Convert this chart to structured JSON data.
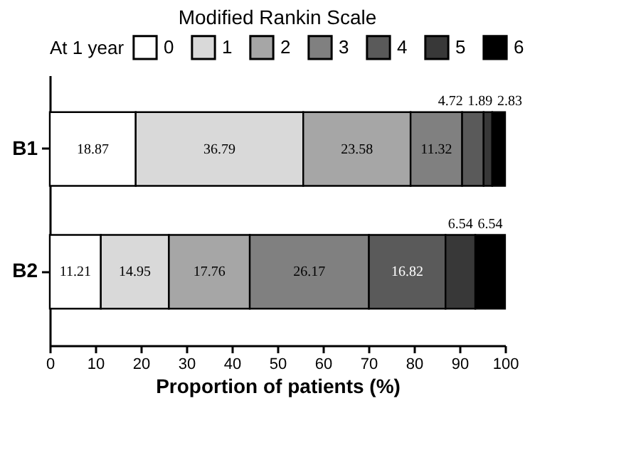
{
  "chart_data": {
    "type": "bar",
    "orientation": "horizontal",
    "stacked": true,
    "title": "Modified Rankin Scale",
    "legend_title": "At 1 year",
    "xlabel": "Proportion of patients (%)",
    "categories": [
      "B1",
      "B2"
    ],
    "series": [
      {
        "name": "0",
        "color": "#ffffff",
        "values": [
          18.87,
          11.21
        ]
      },
      {
        "name": "1",
        "color": "#d9d9d9",
        "values": [
          36.79,
          14.95
        ]
      },
      {
        "name": "2",
        "color": "#a6a6a6",
        "values": [
          23.58,
          17.76
        ]
      },
      {
        "name": "3",
        "color": "#808080",
        "values": [
          11.32,
          26.17
        ]
      },
      {
        "name": "4",
        "color": "#5a5a5a",
        "values": [
          4.72,
          16.82
        ]
      },
      {
        "name": "5",
        "color": "#383838",
        "values": [
          1.89,
          6.54
        ]
      },
      {
        "name": "6",
        "color": "#000000",
        "values": [
          2.83,
          6.54
        ]
      }
    ],
    "xlim": [
      0,
      100
    ],
    "xticks": [
      0,
      10,
      20,
      30,
      40,
      50,
      60,
      70,
      80,
      90,
      100
    ],
    "data_labels": true,
    "legend": "top",
    "grid": false
  }
}
